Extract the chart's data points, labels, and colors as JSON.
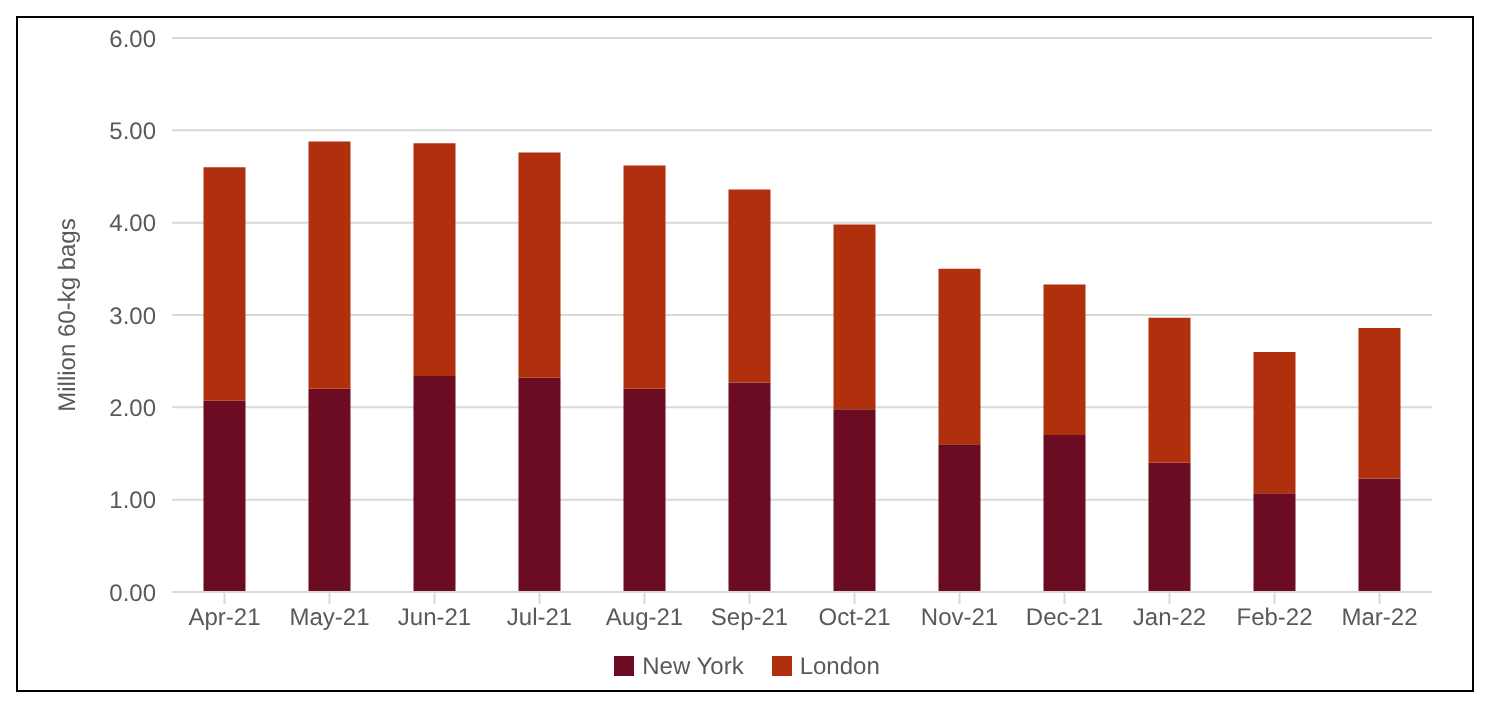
{
  "chart_data": {
    "type": "bar",
    "stacked": true,
    "ylabel": "Million 60-kg bags",
    "categories": [
      "Apr-21",
      "May-21",
      "Jun-21",
      "Jul-21",
      "Aug-21",
      "Sep-21",
      "Oct-21",
      "Nov-21",
      "Dec-21",
      "Jan-22",
      "Feb-22",
      "Mar-22"
    ],
    "series": [
      {
        "name": "New York",
        "color": "#6b0c22",
        "values": [
          2.07,
          2.2,
          2.34,
          2.32,
          2.2,
          2.27,
          1.98,
          1.6,
          1.7,
          1.4,
          1.07,
          1.23
        ]
      },
      {
        "name": "London",
        "color": "#b0300e",
        "values": [
          2.53,
          2.68,
          2.52,
          2.44,
          2.42,
          2.09,
          2.0,
          1.9,
          1.63,
          1.57,
          1.53,
          1.63
        ]
      }
    ],
    "ylim": [
      0,
      6
    ],
    "yticks": [
      {
        "value": 0,
        "label": "0.00"
      },
      {
        "value": 1,
        "label": "1.00"
      },
      {
        "value": 2,
        "label": "2.00"
      },
      {
        "value": 3,
        "label": "3.00"
      },
      {
        "value": 4,
        "label": "4.00"
      },
      {
        "value": 5,
        "label": "5.00"
      },
      {
        "value": 6,
        "label": "6.00"
      }
    ],
    "grid": "y",
    "legend": "bottom"
  }
}
